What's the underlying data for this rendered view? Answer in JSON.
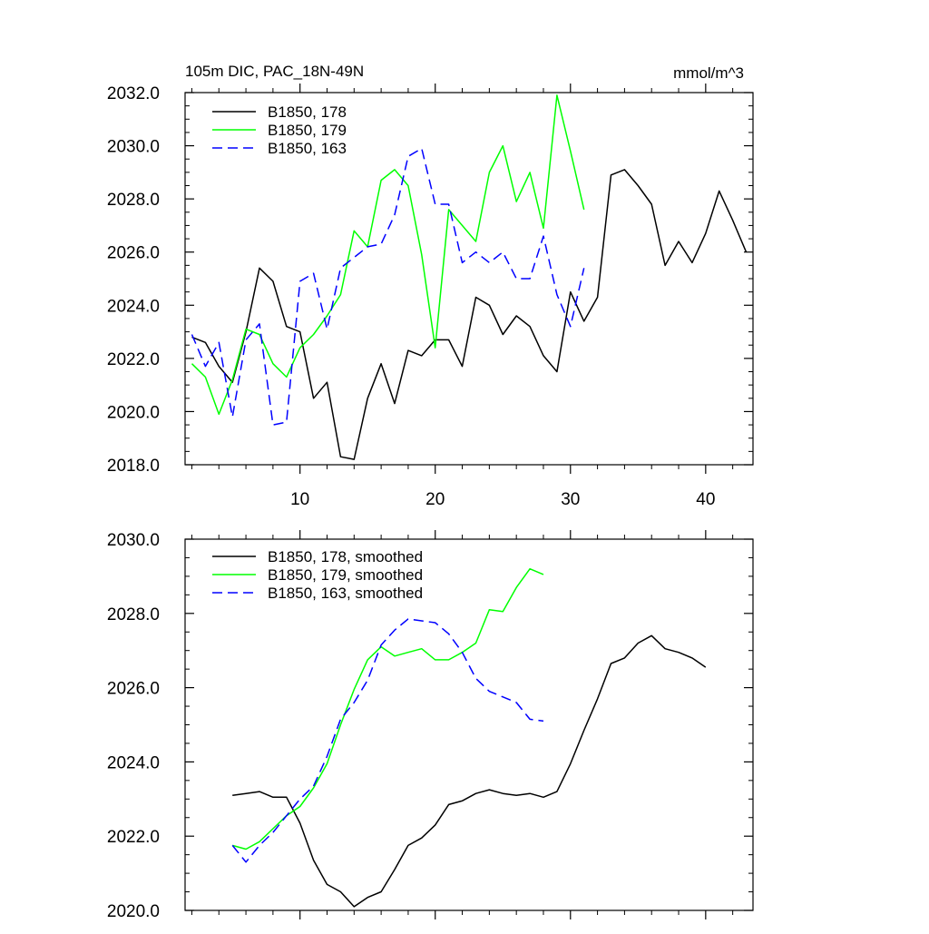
{
  "chart_data": [
    {
      "type": "line",
      "title": "105m DIC, PAC_18N-49N",
      "units": "mmol/m^3",
      "xlim": [
        1.5,
        43.5
      ],
      "ylim": [
        2018.0,
        2032.0
      ],
      "x_ticks": [
        10,
        20,
        30,
        40
      ],
      "y_ticks": [
        "2018.0",
        "2020.0",
        "2022.0",
        "2024.0",
        "2026.0",
        "2028.0",
        "2030.0",
        "2032.0"
      ],
      "series": [
        {
          "name": "B1850, 178",
          "color": "#000000",
          "dash": "solid",
          "x": [
            2,
            3,
            4,
            5,
            6,
            7,
            8,
            9,
            10,
            11,
            12,
            13,
            14,
            15,
            16,
            17,
            18,
            19,
            20,
            21,
            22,
            23,
            24,
            25,
            26,
            27,
            28,
            29,
            30,
            31,
            32,
            33,
            34,
            35,
            36,
            37,
            38,
            39,
            40,
            41,
            42,
            43
          ],
          "y": [
            2022.8,
            2022.6,
            2021.7,
            2021.1,
            2023.0,
            2025.4,
            2024.9,
            2023.2,
            2023.0,
            2020.5,
            2021.1,
            2018.3,
            2018.2,
            2020.5,
            2021.8,
            2020.3,
            2022.3,
            2022.1,
            2022.7,
            2022.7,
            2021.7,
            2024.3,
            2024.0,
            2022.9,
            2023.6,
            2023.2,
            2022.1,
            2021.5,
            2024.5,
            2023.4,
            2024.3,
            2028.9,
            2029.1,
            2028.5,
            2027.8,
            2025.5,
            2026.4,
            2025.6,
            2026.7,
            2028.3,
            2027.2,
            2026.0
          ]
        },
        {
          "name": "B1850, 179",
          "color": "#00ff00",
          "dash": "solid",
          "x": [
            2,
            3,
            4,
            5,
            6,
            7,
            8,
            9,
            10,
            11,
            12,
            13,
            14,
            15,
            16,
            17,
            18,
            19,
            20,
            21,
            22,
            23,
            24,
            25,
            26,
            27,
            28,
            29,
            30,
            31
          ],
          "y": [
            2021.8,
            2021.3,
            2019.9,
            2021.2,
            2023.1,
            2022.9,
            2021.8,
            2021.3,
            2022.4,
            2022.9,
            2023.6,
            2024.4,
            2026.8,
            2026.2,
            2028.7,
            2029.1,
            2028.5,
            2025.9,
            2022.4,
            2027.6,
            2027.0,
            2026.4,
            2029.0,
            2030.0,
            2027.9,
            2029.0,
            2026.9,
            2031.9,
            2029.8,
            2027.6
          ]
        },
        {
          "name": "B1850, 163",
          "color": "#0000ff",
          "dash": "dashed",
          "x": [
            2,
            3,
            4,
            5,
            6,
            7,
            8,
            9,
            10,
            11,
            12,
            13,
            14,
            15,
            16,
            17,
            18,
            19,
            20,
            21,
            22,
            23,
            24,
            25,
            26,
            27,
            28,
            29,
            30,
            31
          ],
          "y": [
            2022.9,
            2021.7,
            2022.6,
            2019.8,
            2022.7,
            2023.3,
            2019.5,
            2019.6,
            2024.9,
            2025.2,
            2023.1,
            2025.4,
            2025.8,
            2026.2,
            2026.3,
            2027.4,
            2029.6,
            2029.9,
            2027.8,
            2027.8,
            2025.6,
            2026.0,
            2025.6,
            2026.0,
            2025.0,
            2025.0,
            2026.6,
            2024.4,
            2023.2,
            2025.4
          ]
        }
      ]
    },
    {
      "type": "line",
      "xlim": [
        1.5,
        43.5
      ],
      "ylim": [
        2020.0,
        2030.0
      ],
      "x_ticks": [
        10,
        20,
        30,
        40
      ],
      "y_ticks": [
        "2020.0",
        "2022.0",
        "2024.0",
        "2026.0",
        "2028.0",
        "2030.0"
      ],
      "series": [
        {
          "name": "B1850, 178, smoothed",
          "color": "#000000",
          "dash": "solid",
          "x": [
            5,
            6,
            7,
            8,
            9,
            10,
            11,
            12,
            13,
            14,
            15,
            16,
            17,
            18,
            19,
            20,
            21,
            22,
            23,
            24,
            25,
            26,
            27,
            28,
            29,
            30,
            31,
            32,
            33,
            34,
            35,
            36,
            37,
            38,
            39,
            40
          ],
          "y": [
            2023.1,
            2023.15,
            2023.2,
            2023.05,
            2023.05,
            2022.35,
            2021.35,
            2020.7,
            2020.5,
            2020.1,
            2020.35,
            2020.5,
            2021.1,
            2021.75,
            2021.95,
            2022.3,
            2022.85,
            2022.95,
            2023.15,
            2023.25,
            2023.15,
            2023.1,
            2023.15,
            2023.05,
            2023.2,
            2023.95,
            2024.85,
            2025.7,
            2026.65,
            2026.8,
            2027.2,
            2027.4,
            2027.05,
            2026.95,
            2026.8,
            2026.55
          ]
        },
        {
          "name": "B1850, 179, smoothed",
          "color": "#00ff00",
          "dash": "solid",
          "x": [
            5,
            6,
            7,
            8,
            9,
            10,
            11,
            12,
            13,
            14,
            15,
            16,
            17,
            18,
            19,
            20,
            21,
            22,
            23,
            24,
            25,
            26,
            27,
            28
          ],
          "y": [
            2021.75,
            2021.65,
            2021.85,
            2022.2,
            2022.55,
            2022.8,
            2023.3,
            2023.95,
            2025.0,
            2025.95,
            2026.75,
            2027.1,
            2026.85,
            2026.95,
            2027.05,
            2026.75,
            2026.75,
            2026.95,
            2027.2,
            2028.1,
            2028.05,
            2028.7,
            2029.2,
            2029.05
          ]
        },
        {
          "name": "B1850, 163, smoothed",
          "color": "#0000ff",
          "dash": "dashed",
          "x": [
            5,
            6,
            7,
            8,
            9,
            10,
            11,
            12,
            13,
            14,
            15,
            16,
            17,
            18,
            19,
            20,
            21,
            22,
            23,
            24,
            25,
            26,
            27,
            28
          ],
          "y": [
            2021.75,
            2021.3,
            2021.75,
            2022.1,
            2022.55,
            2023.0,
            2023.35,
            2024.15,
            2025.15,
            2025.6,
            2026.2,
            2027.15,
            2027.55,
            2027.85,
            2027.8,
            2027.75,
            2027.45,
            2026.95,
            2026.25,
            2025.9,
            2025.75,
            2025.6,
            2025.15,
            2025.1
          ]
        }
      ]
    }
  ]
}
